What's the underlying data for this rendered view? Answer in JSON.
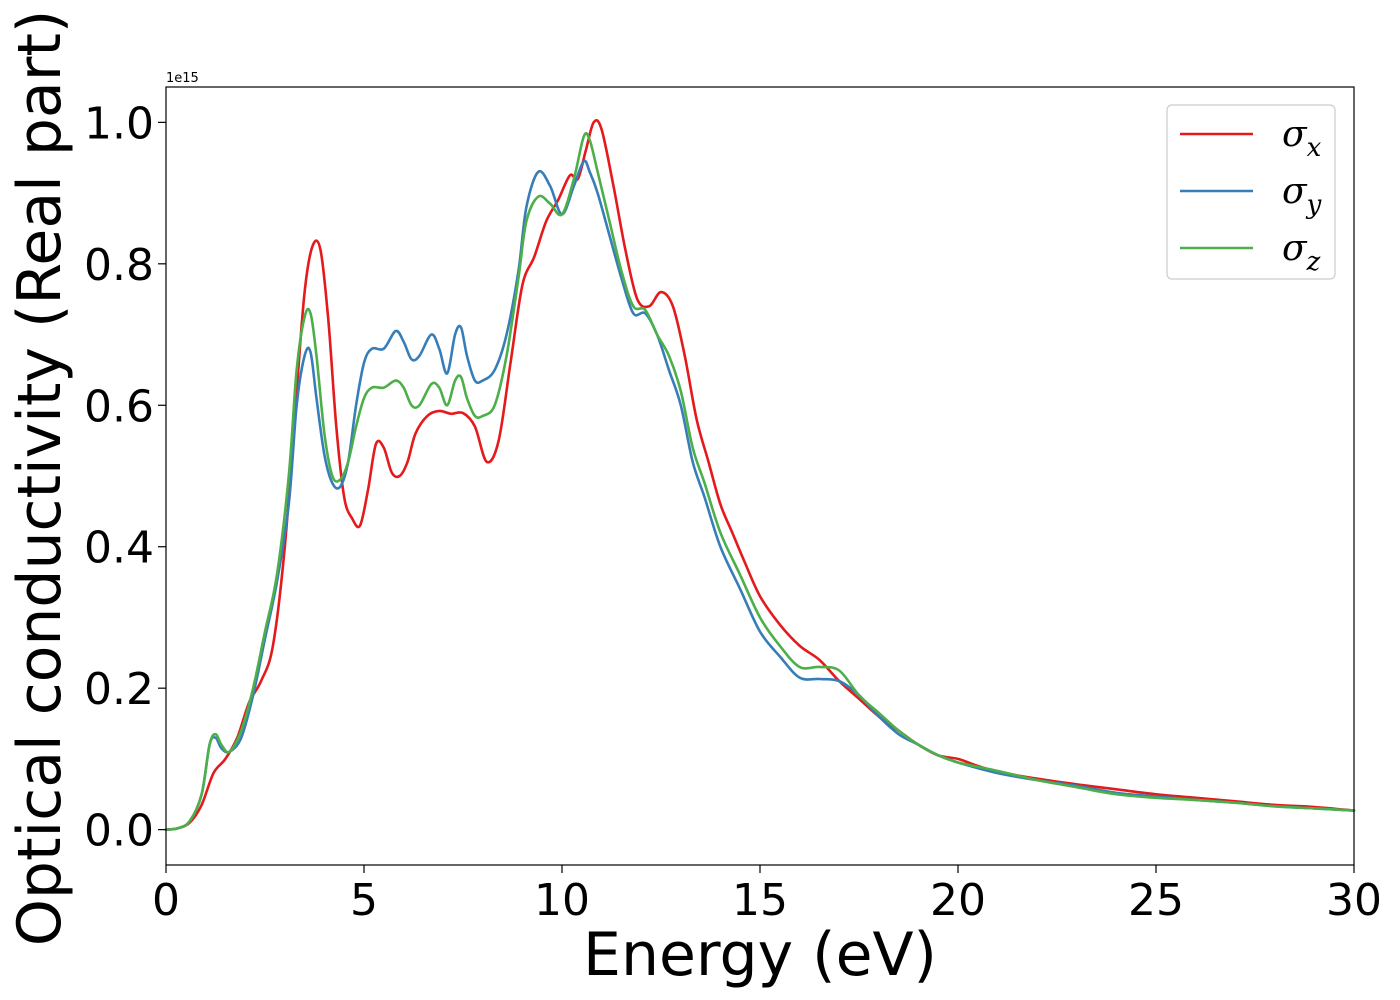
{
  "chart_data": {
    "type": "line",
    "xlabel": "Energy (eV)",
    "ylabel": "Optical conductivity (Real part)",
    "offset_text": "1e15",
    "xlim": [
      0,
      30
    ],
    "ylim": [
      -0.05,
      1.05
    ],
    "x_ticks": [
      0,
      5,
      10,
      15,
      20,
      25,
      30
    ],
    "x_tick_labels": [
      "0",
      "5",
      "10",
      "15",
      "20",
      "25",
      "30"
    ],
    "y_ticks": [
      0.0,
      0.2,
      0.4,
      0.6,
      0.8,
      1.0
    ],
    "y_tick_labels": [
      "0.0",
      "0.2",
      "0.4",
      "0.6",
      "0.8",
      "1.0"
    ],
    "grid": false,
    "legend_position": "top-right",
    "series": [
      {
        "name": "σ",
        "subscript": "x",
        "color": "#e41a1c",
        "points": [
          [
            0,
            0
          ],
          [
            0.3,
            0.002
          ],
          [
            0.6,
            0.01
          ],
          [
            0.9,
            0.035
          ],
          [
            1.2,
            0.08
          ],
          [
            1.5,
            0.1
          ],
          [
            1.8,
            0.13
          ],
          [
            2.1,
            0.18
          ],
          [
            2.4,
            0.21
          ],
          [
            2.7,
            0.26
          ],
          [
            3.0,
            0.4
          ],
          [
            3.3,
            0.62
          ],
          [
            3.5,
            0.76
          ],
          [
            3.7,
            0.825
          ],
          [
            3.9,
            0.82
          ],
          [
            4.1,
            0.72
          ],
          [
            4.3,
            0.57
          ],
          [
            4.5,
            0.47
          ],
          [
            4.7,
            0.44
          ],
          [
            4.9,
            0.43
          ],
          [
            5.1,
            0.48
          ],
          [
            5.3,
            0.545
          ],
          [
            5.5,
            0.54
          ],
          [
            5.7,
            0.505
          ],
          [
            5.9,
            0.5
          ],
          [
            6.1,
            0.52
          ],
          [
            6.3,
            0.56
          ],
          [
            6.6,
            0.585
          ],
          [
            6.9,
            0.592
          ],
          [
            7.2,
            0.588
          ],
          [
            7.5,
            0.589
          ],
          [
            7.8,
            0.57
          ],
          [
            8.1,
            0.52
          ],
          [
            8.4,
            0.55
          ],
          [
            8.7,
            0.66
          ],
          [
            9.0,
            0.77
          ],
          [
            9.3,
            0.81
          ],
          [
            9.6,
            0.86
          ],
          [
            9.9,
            0.89
          ],
          [
            10.2,
            0.925
          ],
          [
            10.4,
            0.92
          ],
          [
            10.6,
            0.96
          ],
          [
            10.8,
            1.0
          ],
          [
            11.0,
            0.99
          ],
          [
            11.3,
            0.91
          ],
          [
            11.6,
            0.82
          ],
          [
            11.9,
            0.75
          ],
          [
            12.2,
            0.74
          ],
          [
            12.5,
            0.76
          ],
          [
            12.8,
            0.74
          ],
          [
            13.1,
            0.67
          ],
          [
            13.4,
            0.58
          ],
          [
            13.7,
            0.52
          ],
          [
            14.0,
            0.46
          ],
          [
            14.3,
            0.42
          ],
          [
            14.6,
            0.38
          ],
          [
            15.0,
            0.33
          ],
          [
            15.5,
            0.29
          ],
          [
            16.0,
            0.26
          ],
          [
            16.5,
            0.24
          ],
          [
            17.0,
            0.21
          ],
          [
            17.5,
            0.185
          ],
          [
            18.0,
            0.16
          ],
          [
            18.5,
            0.14
          ],
          [
            19.0,
            0.12
          ],
          [
            19.5,
            0.105
          ],
          [
            20.0,
            0.1
          ],
          [
            20.5,
            0.09
          ],
          [
            21.0,
            0.082
          ],
          [
            22.0,
            0.072
          ],
          [
            23.0,
            0.064
          ],
          [
            24.0,
            0.057
          ],
          [
            25.0,
            0.05
          ],
          [
            26.0,
            0.045
          ],
          [
            27.0,
            0.04
          ],
          [
            28.0,
            0.035
          ],
          [
            29.0,
            0.032
          ],
          [
            30.0,
            0.027
          ]
        ]
      },
      {
        "name": "σ",
        "subscript": "y",
        "color": "#377eb8",
        "points": [
          [
            0,
            0
          ],
          [
            0.3,
            0.002
          ],
          [
            0.6,
            0.012
          ],
          [
            0.9,
            0.05
          ],
          [
            1.1,
            0.12
          ],
          [
            1.25,
            0.13
          ],
          [
            1.4,
            0.115
          ],
          [
            1.6,
            0.11
          ],
          [
            1.9,
            0.13
          ],
          [
            2.2,
            0.19
          ],
          [
            2.5,
            0.27
          ],
          [
            2.8,
            0.35
          ],
          [
            3.1,
            0.46
          ],
          [
            3.3,
            0.6
          ],
          [
            3.5,
            0.67
          ],
          [
            3.65,
            0.675
          ],
          [
            3.8,
            0.61
          ],
          [
            4.0,
            0.53
          ],
          [
            4.2,
            0.49
          ],
          [
            4.4,
            0.485
          ],
          [
            4.6,
            0.52
          ],
          [
            4.8,
            0.6
          ],
          [
            5.0,
            0.66
          ],
          [
            5.2,
            0.68
          ],
          [
            5.5,
            0.68
          ],
          [
            5.8,
            0.705
          ],
          [
            6.0,
            0.69
          ],
          [
            6.2,
            0.665
          ],
          [
            6.4,
            0.67
          ],
          [
            6.7,
            0.7
          ],
          [
            6.9,
            0.68
          ],
          [
            7.1,
            0.645
          ],
          [
            7.3,
            0.7
          ],
          [
            7.45,
            0.71
          ],
          [
            7.6,
            0.67
          ],
          [
            7.8,
            0.635
          ],
          [
            8.0,
            0.635
          ],
          [
            8.3,
            0.65
          ],
          [
            8.6,
            0.7
          ],
          [
            8.9,
            0.79
          ],
          [
            9.1,
            0.88
          ],
          [
            9.4,
            0.93
          ],
          [
            9.7,
            0.91
          ],
          [
            10.0,
            0.87
          ],
          [
            10.3,
            0.91
          ],
          [
            10.55,
            0.945
          ],
          [
            10.7,
            0.93
          ],
          [
            10.9,
            0.9
          ],
          [
            11.2,
            0.84
          ],
          [
            11.5,
            0.78
          ],
          [
            11.8,
            0.73
          ],
          [
            12.1,
            0.73
          ],
          [
            12.4,
            0.7
          ],
          [
            12.7,
            0.65
          ],
          [
            13.0,
            0.6
          ],
          [
            13.3,
            0.52
          ],
          [
            13.6,
            0.47
          ],
          [
            14.0,
            0.4
          ],
          [
            14.5,
            0.34
          ],
          [
            15.0,
            0.28
          ],
          [
            15.5,
            0.245
          ],
          [
            16.0,
            0.215
          ],
          [
            16.5,
            0.213
          ],
          [
            17.0,
            0.21
          ],
          [
            17.5,
            0.19
          ],
          [
            18.0,
            0.16
          ],
          [
            18.5,
            0.135
          ],
          [
            19.0,
            0.12
          ],
          [
            19.5,
            0.105
          ],
          [
            20.0,
            0.095
          ],
          [
            21.0,
            0.08
          ],
          [
            22.0,
            0.07
          ],
          [
            23.0,
            0.062
          ],
          [
            24.0,
            0.052
          ],
          [
            25.0,
            0.047
          ],
          [
            26.0,
            0.042
          ],
          [
            27.0,
            0.038
          ],
          [
            28.0,
            0.033
          ],
          [
            29.0,
            0.03
          ],
          [
            30.0,
            0.027
          ]
        ]
      },
      {
        "name": "σ",
        "subscript": "z",
        "color": "#4daf4a",
        "points": [
          [
            0,
            0
          ],
          [
            0.3,
            0.002
          ],
          [
            0.6,
            0.012
          ],
          [
            0.9,
            0.05
          ],
          [
            1.1,
            0.12
          ],
          [
            1.25,
            0.135
          ],
          [
            1.4,
            0.12
          ],
          [
            1.6,
            0.11
          ],
          [
            1.9,
            0.14
          ],
          [
            2.2,
            0.2
          ],
          [
            2.5,
            0.28
          ],
          [
            2.8,
            0.36
          ],
          [
            3.1,
            0.5
          ],
          [
            3.3,
            0.65
          ],
          [
            3.5,
            0.725
          ],
          [
            3.65,
            0.73
          ],
          [
            3.8,
            0.67
          ],
          [
            4.0,
            0.56
          ],
          [
            4.2,
            0.5
          ],
          [
            4.4,
            0.495
          ],
          [
            4.6,
            0.52
          ],
          [
            4.8,
            0.57
          ],
          [
            5.0,
            0.61
          ],
          [
            5.2,
            0.625
          ],
          [
            5.5,
            0.625
          ],
          [
            5.8,
            0.635
          ],
          [
            6.0,
            0.625
          ],
          [
            6.2,
            0.6
          ],
          [
            6.4,
            0.6
          ],
          [
            6.7,
            0.63
          ],
          [
            6.9,
            0.625
          ],
          [
            7.1,
            0.6
          ],
          [
            7.3,
            0.635
          ],
          [
            7.45,
            0.64
          ],
          [
            7.6,
            0.61
          ],
          [
            7.8,
            0.585
          ],
          [
            8.0,
            0.585
          ],
          [
            8.3,
            0.6
          ],
          [
            8.6,
            0.67
          ],
          [
            8.9,
            0.78
          ],
          [
            9.1,
            0.86
          ],
          [
            9.4,
            0.895
          ],
          [
            9.7,
            0.885
          ],
          [
            10.0,
            0.87
          ],
          [
            10.3,
            0.92
          ],
          [
            10.55,
            0.98
          ],
          [
            10.7,
            0.975
          ],
          [
            10.9,
            0.93
          ],
          [
            11.2,
            0.86
          ],
          [
            11.5,
            0.79
          ],
          [
            11.8,
            0.74
          ],
          [
            12.1,
            0.735
          ],
          [
            12.4,
            0.7
          ],
          [
            12.7,
            0.67
          ],
          [
            13.0,
            0.62
          ],
          [
            13.3,
            0.54
          ],
          [
            13.6,
            0.49
          ],
          [
            14.0,
            0.42
          ],
          [
            14.5,
            0.36
          ],
          [
            15.0,
            0.3
          ],
          [
            15.5,
            0.26
          ],
          [
            16.0,
            0.23
          ],
          [
            16.5,
            0.23
          ],
          [
            17.0,
            0.225
          ],
          [
            17.5,
            0.19
          ],
          [
            18.0,
            0.165
          ],
          [
            18.5,
            0.14
          ],
          [
            19.0,
            0.12
          ],
          [
            19.5,
            0.105
          ],
          [
            20.0,
            0.095
          ],
          [
            21.0,
            0.083
          ],
          [
            22.0,
            0.07
          ],
          [
            23.0,
            0.06
          ],
          [
            24.0,
            0.05
          ],
          [
            25.0,
            0.045
          ],
          [
            26.0,
            0.042
          ],
          [
            27.0,
            0.038
          ],
          [
            28.0,
            0.033
          ],
          [
            29.0,
            0.03
          ],
          [
            30.0,
            0.027
          ]
        ]
      }
    ]
  }
}
